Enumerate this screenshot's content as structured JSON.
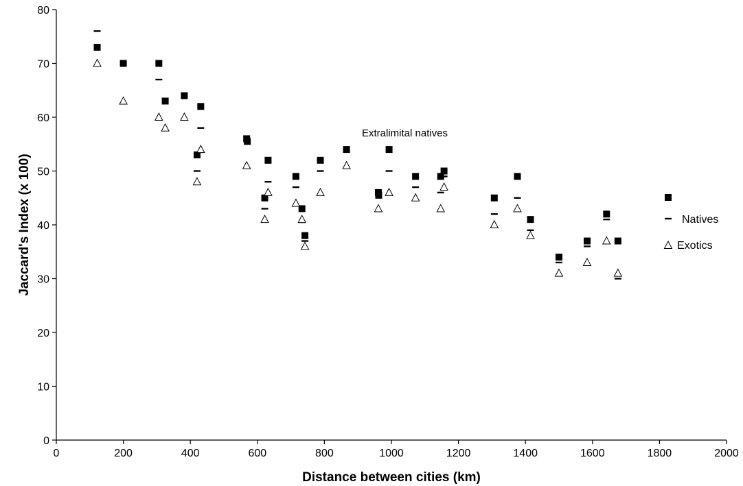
{
  "chart_data": {
    "type": "scatter",
    "xlabel": "Distance between cities (km)",
    "ylabel": "Jaccard's Index (x 100)",
    "xlim": [
      0,
      2000
    ],
    "ylim": [
      0,
      80
    ],
    "xticks": [
      0,
      200,
      400,
      600,
      800,
      1000,
      1200,
      1400,
      1600,
      1800,
      2000
    ],
    "yticks": [
      0,
      10,
      20,
      30,
      40,
      50,
      60,
      70,
      80
    ],
    "grid": false,
    "legend_position": "right",
    "annotation": "Extralimital natives",
    "series": [
      {
        "marker": "filled-square",
        "color": "#000000",
        "points": [
          [
            122,
            73
          ],
          [
            200,
            70
          ],
          [
            306,
            70
          ],
          [
            325,
            63
          ],
          [
            382,
            64
          ],
          [
            420,
            53
          ],
          [
            431,
            62
          ],
          [
            568,
            56
          ],
          [
            570,
            55.5
          ],
          [
            622,
            45
          ],
          [
            632,
            52
          ],
          [
            715,
            49
          ],
          [
            733,
            43
          ],
          [
            742,
            38
          ],
          [
            788,
            52
          ],
          [
            866,
            54
          ],
          [
            961,
            46
          ],
          [
            962,
            45.5
          ],
          [
            993,
            54
          ],
          [
            1072,
            49
          ],
          [
            1147,
            49
          ],
          [
            1157,
            50
          ],
          [
            1307,
            45
          ],
          [
            1376,
            49
          ],
          [
            1415,
            41
          ],
          [
            1500,
            34
          ],
          [
            1584,
            37
          ],
          [
            1642,
            42
          ],
          [
            1676,
            37
          ]
        ]
      },
      {
        "name": "Natives",
        "marker": "dash",
        "color": "#000000",
        "points": [
          [
            122,
            76
          ],
          [
            306,
            67
          ],
          [
            420,
            50
          ],
          [
            431,
            58
          ],
          [
            622,
            43
          ],
          [
            632,
            48
          ],
          [
            715,
            47
          ],
          [
            733,
            40.5
          ],
          [
            742,
            37
          ],
          [
            788,
            50
          ],
          [
            866,
            54
          ],
          [
            993,
            50
          ],
          [
            1072,
            47
          ],
          [
            1147,
            46
          ],
          [
            1157,
            49
          ],
          [
            1307,
            42
          ],
          [
            1376,
            45
          ],
          [
            1415,
            39
          ],
          [
            1500,
            33
          ],
          [
            1584,
            36
          ],
          [
            1642,
            41
          ],
          [
            1676,
            30
          ]
        ]
      },
      {
        "name": "Exotics",
        "marker": "open-triangle",
        "color": "#000000",
        "points": [
          [
            122,
            70
          ],
          [
            200,
            63
          ],
          [
            306,
            60
          ],
          [
            325,
            58
          ],
          [
            382,
            60
          ],
          [
            420,
            48
          ],
          [
            431,
            54
          ],
          [
            568,
            51
          ],
          [
            622,
            41
          ],
          [
            632,
            46
          ],
          [
            715,
            44
          ],
          [
            733,
            41
          ],
          [
            742,
            36
          ],
          [
            788,
            46
          ],
          [
            866,
            51
          ],
          [
            961,
            43
          ],
          [
            993,
            46
          ],
          [
            1072,
            45
          ],
          [
            1147,
            43
          ],
          [
            1157,
            47
          ],
          [
            1307,
            40
          ],
          [
            1376,
            43
          ],
          [
            1415,
            38
          ],
          [
            1500,
            31
          ],
          [
            1584,
            33
          ],
          [
            1642,
            37
          ],
          [
            1676,
            31
          ]
        ]
      }
    ]
  }
}
